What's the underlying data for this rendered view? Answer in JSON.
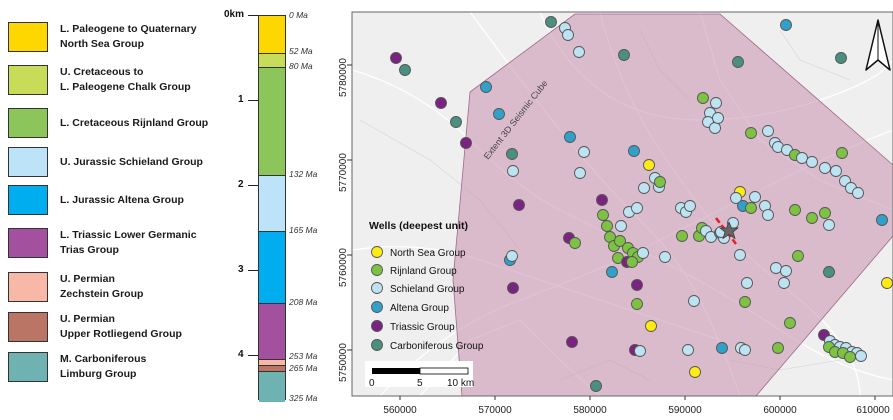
{
  "stratigraphy": {
    "units": [
      {
        "id": "north-sea",
        "label_line1": "L. Paleogene to Quaternary",
        "label_line2": "North Sea Group",
        "color": "#FFD700"
      },
      {
        "id": "chalk",
        "label_line1": "U. Cretaceous to",
        "label_line2": "L. Paleogene Chalk Group",
        "color": "#C8DC5A"
      },
      {
        "id": "rijnland",
        "label_line1": "L. Cretaceous Rijnland Group",
        "label_line2": "",
        "color": "#8CC65A"
      },
      {
        "id": "schieland",
        "label_line1": "U. Jurassic Schieland Group",
        "label_line2": "",
        "color": "#BDE3F8"
      },
      {
        "id": "altena",
        "label_line1": "L. Jurassic Altena Group",
        "label_line2": "",
        "color": "#00AEEF"
      },
      {
        "id": "lower-germanic",
        "label_line1": "L. Triassic Lower Germanic",
        "label_line2": "Trias Group",
        "color": "#A3509F"
      },
      {
        "id": "zechstein",
        "label_line1": "U. Permian",
        "label_line2": "Zechstein Group",
        "color": "#F7B8A8"
      },
      {
        "id": "rotliegend",
        "label_line1": "U. Permian",
        "label_line2": "Upper Rotliegend Group",
        "color": "#BA7565"
      },
      {
        "id": "limburg",
        "label_line1": "M. Carboniferous",
        "label_line2": "Limburg Group",
        "color": "#6EB3B2"
      }
    ],
    "km_labels": [
      "0km",
      "1",
      "2",
      "3",
      "4"
    ],
    "ages": [
      "0 Ma",
      "52 Ma",
      "80 Ma",
      "132 Ma",
      "165 Ma",
      "208 Ma",
      "253 Ma",
      "265 Ma",
      "325 Ma"
    ]
  },
  "map": {
    "y_ticks": [
      "5780000",
      "5770000",
      "5760000",
      "5750000"
    ],
    "x_ticks": [
      "560000",
      "570000",
      "580000",
      "590000",
      "600000",
      "610000"
    ],
    "seismic_label": "Extent 3D Seismic Cube",
    "north_arrow": "north-arrow-icon",
    "scale_bar": {
      "labels": [
        "0",
        "5",
        "10 km"
      ]
    },
    "legend": {
      "title": "Wells (deepest unit)",
      "items": [
        {
          "label": "North Sea Group",
          "color": "#FFEB14"
        },
        {
          "label": "Rijnland Group",
          "color": "#7DC242"
        },
        {
          "label": "Schieland Group",
          "color": "#BDE3F2"
        },
        {
          "label": "Altena Group",
          "color": "#31A1C9"
        },
        {
          "label": "Triassic Group",
          "color": "#7B2382"
        },
        {
          "label": "Carboniferous Group",
          "color": "#4A8F7F"
        }
      ]
    }
  }
}
